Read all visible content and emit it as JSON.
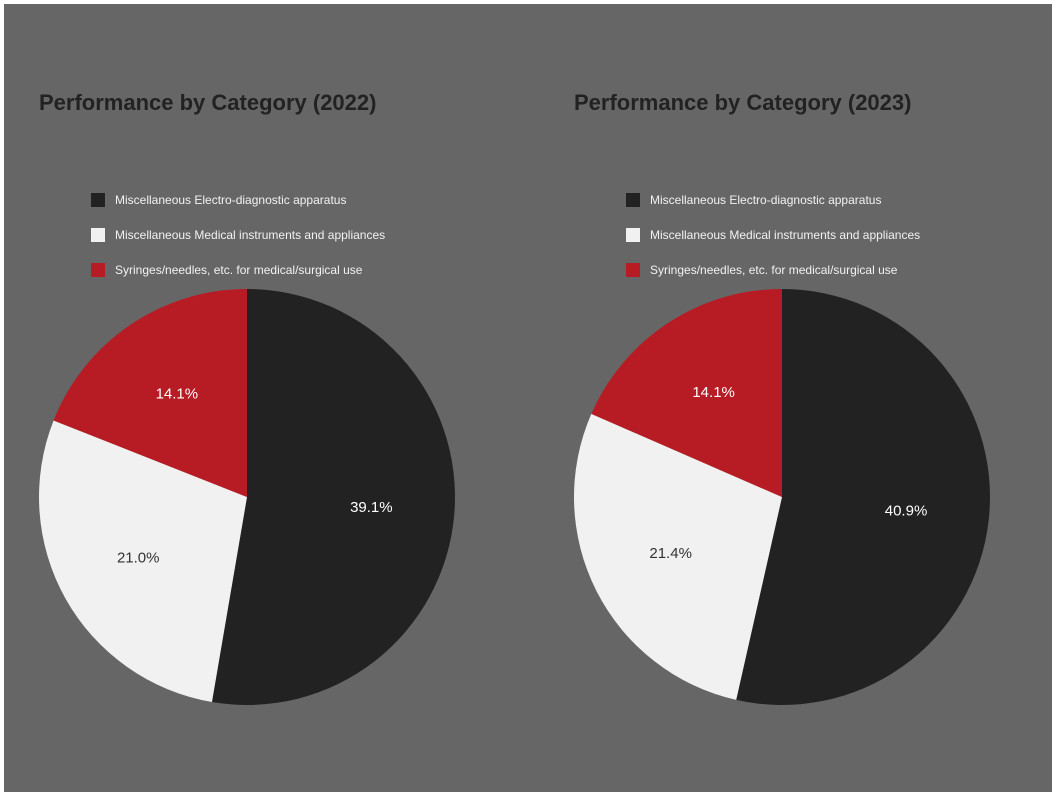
{
  "chart_data": [
    {
      "type": "pie",
      "title": "Performance by Category (2022)",
      "legend_position": "top",
      "categories": [
        "Miscellaneous Electro-diagnostic apparatus",
        "Miscellaneous Medical instruments and appliances",
        "Syringes/needles, etc. for medical/surgical use"
      ],
      "values": [
        39.1,
        21.0,
        14.1
      ],
      "labels": [
        "39.1%",
        "21.0%",
        "14.1%"
      ],
      "colors": [
        "#222222",
        "#f1f1f1",
        "#b71c24"
      ],
      "label_colors": [
        "#ffffff",
        "#333333",
        "#ffffff"
      ]
    },
    {
      "type": "pie",
      "title": "Performance by Category (2023)",
      "legend_position": "top",
      "categories": [
        "Miscellaneous Electro-diagnostic apparatus",
        "Miscellaneous Medical instruments and appliances",
        "Syringes/needles, etc. for medical/surgical use"
      ],
      "values": [
        40.9,
        21.4,
        14.1
      ],
      "labels": [
        "40.9%",
        "21.4%",
        "14.1%"
      ],
      "colors": [
        "#222222",
        "#f1f1f1",
        "#b71c24"
      ],
      "label_colors": [
        "#ffffff",
        "#333333",
        "#ffffff"
      ]
    }
  ]
}
